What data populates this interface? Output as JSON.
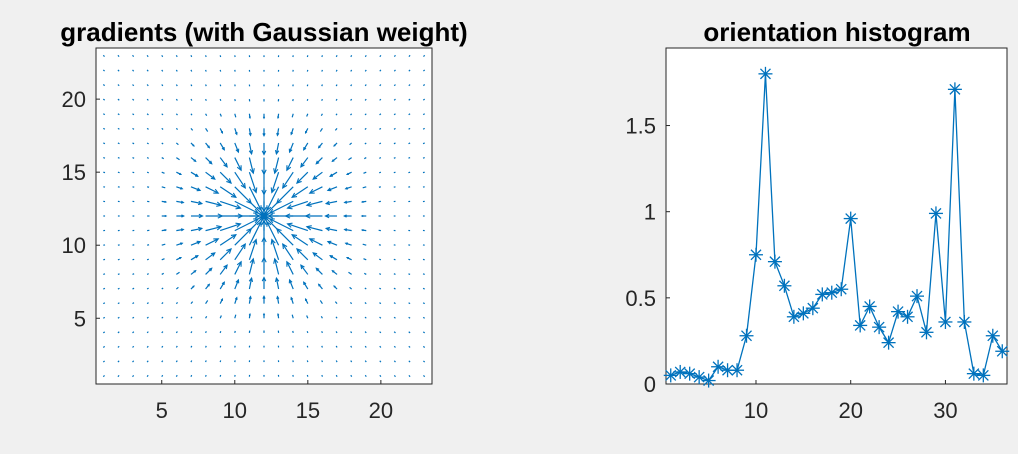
{
  "chart_data": [
    {
      "type": "quiver",
      "title": "gradients (with Gaussian weight)",
      "xlim": [
        0.5,
        23.5
      ],
      "ylim": [
        0.5,
        23.5
      ],
      "xticks": [
        5,
        10,
        15,
        20
      ],
      "yticks": [
        5,
        10,
        15,
        20
      ],
      "grid": false,
      "color": "#0072BD",
      "field": {
        "x_range": [
          1,
          23
        ],
        "y_range": [
          1,
          23
        ],
        "center": [
          12,
          12
        ],
        "gaussian_sigma": 3.5,
        "peak_arrow_length": 2.2,
        "pattern": "arrows converge toward the center point (12,12); strongest near center, fading outward"
      }
    },
    {
      "type": "line",
      "title": "orientation histogram",
      "marker": "*",
      "color": "#0072BD",
      "xlim": [
        0.5,
        36.5
      ],
      "ylim": [
        0,
        1.95
      ],
      "xticks": [
        10,
        20,
        30
      ],
      "yticks": [
        0,
        0.5,
        1,
        1.5
      ],
      "grid": false,
      "x": [
        1,
        2,
        3,
        4,
        5,
        6,
        7,
        8,
        9,
        10,
        11,
        12,
        13,
        14,
        15,
        16,
        17,
        18,
        19,
        20,
        21,
        22,
        23,
        24,
        25,
        26,
        27,
        28,
        29,
        30,
        31,
        32,
        33,
        34,
        35,
        36
      ],
      "y": [
        0.05,
        0.07,
        0.06,
        0.04,
        0.02,
        0.1,
        0.08,
        0.08,
        0.28,
        0.75,
        1.8,
        0.71,
        0.57,
        0.39,
        0.41,
        0.44,
        0.52,
        0.53,
        0.55,
        0.96,
        0.34,
        0.45,
        0.33,
        0.24,
        0.42,
        0.39,
        0.51,
        0.3,
        0.99,
        0.36,
        1.71,
        0.36,
        0.06,
        0.05,
        0.28,
        0.19
      ]
    }
  ]
}
